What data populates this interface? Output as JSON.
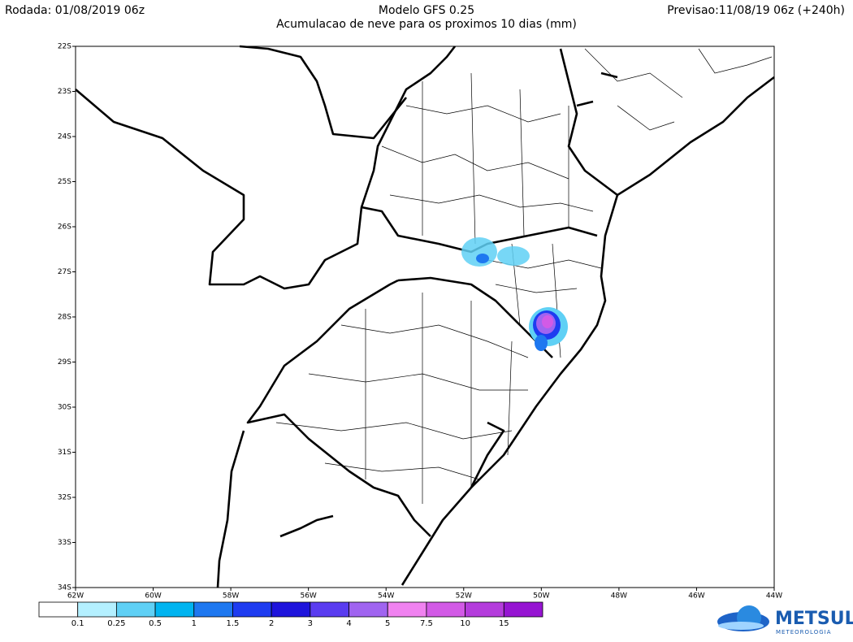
{
  "header": {
    "left": "Rodada: 01/08/2019 06z",
    "title": "Modelo GFS 0.25",
    "subtitle": "Acumulacao de neve para os proximos 10 dias (mm)",
    "right": "Previsao:11/08/19 06z (+240h)"
  },
  "map": {
    "lat_labels": [
      "22S",
      "23S",
      "24S",
      "25S",
      "26S",
      "27S",
      "28S",
      "29S",
      "30S",
      "31S",
      "32S",
      "33S",
      "34S"
    ],
    "lon_labels": [
      "62W",
      "60W",
      "58W",
      "56W",
      "54W",
      "52W",
      "50W",
      "48W",
      "46W",
      "44W"
    ]
  },
  "colorbar": {
    "labels": [
      "0.1",
      "0.25",
      "0.5",
      "1",
      "1.5",
      "2",
      "3",
      "4",
      "5",
      "7.5",
      "10",
      "15"
    ],
    "colors": [
      "#ffffff",
      "#b4f0ff",
      "#5fd0f5",
      "#00b4f0",
      "#1e78f0",
      "#1e3cf0",
      "#1e14dc",
      "#5a3cf0",
      "#a064f0",
      "#f082f0",
      "#d25ae6",
      "#b43cdc",
      "#9614d2"
    ]
  },
  "logo": {
    "name": "METSUL",
    "tagline": "METEOROLOGIA"
  }
}
